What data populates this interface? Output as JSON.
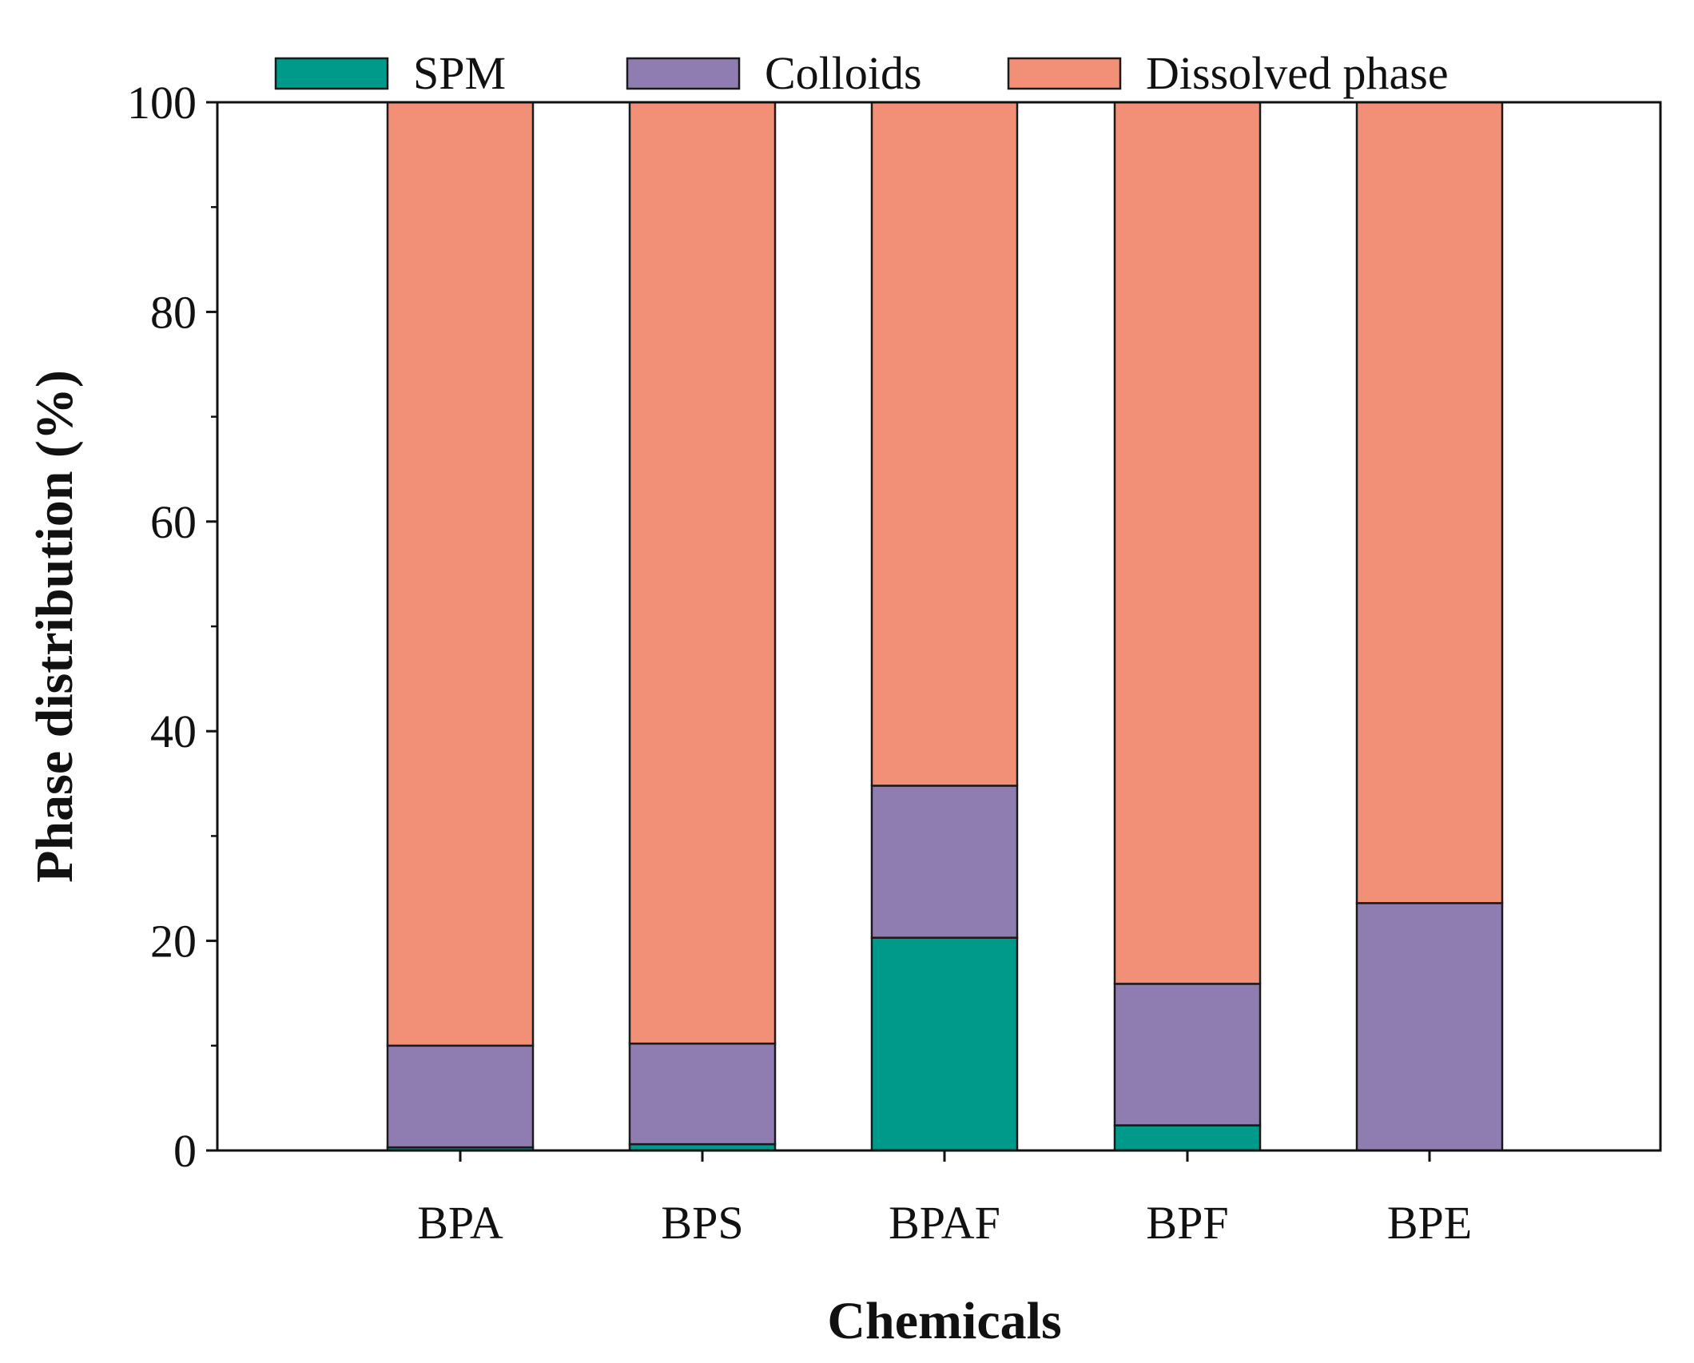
{
  "chart_data": {
    "type": "bar",
    "stacked": true,
    "title": "",
    "xlabel": "Chemicals",
    "ylabel": "Phase distribution (%)",
    "ylim": [
      0,
      100
    ],
    "yticks": [
      0,
      20,
      40,
      60,
      80,
      100
    ],
    "yticks_minor": [
      10,
      30,
      50,
      70,
      90
    ],
    "legend_position": "top",
    "categories": [
      "BPA",
      "BPS",
      "BPAF",
      "BPF",
      "BPE"
    ],
    "series": [
      {
        "name": "SPM",
        "color": "#009a8a",
        "values": [
          0.3,
          0.6,
          20.3,
          2.4,
          0.0
        ]
      },
      {
        "name": "Colloids",
        "color": "#8f7db2",
        "values": [
          9.7,
          9.6,
          14.5,
          13.5,
          23.6
        ]
      },
      {
        "name": "Dissolved phase",
        "color": "#f29077",
        "values": [
          90.0,
          89.8,
          65.2,
          84.1,
          76.4
        ]
      }
    ]
  }
}
